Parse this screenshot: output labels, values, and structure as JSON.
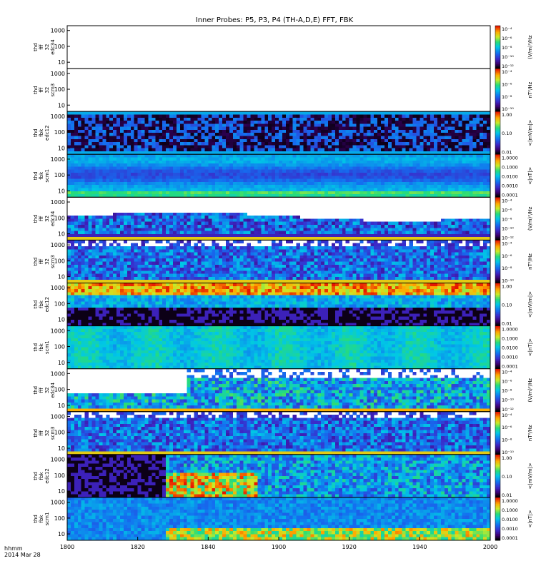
{
  "chart_data": {
    "type": "heatmap",
    "title": "Inner Probes: P5, P3, P4 (TH-A,D,E) FFT, FBK",
    "x_ticks": [
      "1800",
      "1820",
      "1840",
      "1900",
      "1920",
      "1940",
      "2000"
    ],
    "x_label": "hhmm",
    "date_label": "2014 Mar 28",
    "y_ticks": [
      "1000",
      "100",
      "10"
    ],
    "panels": [
      {
        "label": [
          "thd",
          "fff",
          "32",
          "edc34"
        ],
        "cbar": [
          "10⁻⁴",
          "10⁻⁶",
          "10⁻⁸",
          "10⁻¹⁰",
          "10⁻¹²"
        ],
        "cbar_title": "(V/m)²/Hz",
        "extra_ticks": [
          "1000",
          "10"
        ],
        "empty": true,
        "scheme": "none"
      },
      {
        "label": [
          "thd",
          "fff",
          "32",
          "scm3"
        ],
        "cbar": [
          "10⁻⁴",
          "10⁻⁶",
          "10⁻⁸",
          "10⁻¹⁰"
        ],
        "cbar_title": "nT²/Hz",
        "extra_ticks": [],
        "empty": true,
        "scheme": "none"
      },
      {
        "label": [
          "thd",
          "fbk",
          "edc12"
        ],
        "cbar": [
          "1.00",
          "0.10",
          "0.01"
        ],
        "cbar_title": "<|mV/m|>",
        "extra_ticks": [],
        "empty": false,
        "scheme": "ed_dark"
      },
      {
        "label": [
          "thd",
          "fbk",
          "scm1"
        ],
        "cbar": [
          "1.0000",
          "0.1000",
          "0.0100",
          "0.0010",
          "0.0001"
        ],
        "cbar_title": "<|nT|>",
        "extra_ticks": [],
        "empty": false,
        "scheme": "scm_low"
      },
      {
        "label": [
          "thd",
          "fff",
          "32",
          "edc34"
        ],
        "cbar": [
          "10⁻⁴",
          "10⁻⁶",
          "10⁻⁸",
          "10⁻¹⁰",
          "10⁻¹²"
        ],
        "cbar_title": "(V/m)²/Hz",
        "extra_ticks": [],
        "empty": false,
        "scheme": "fff_white"
      },
      {
        "label": [
          "thd",
          "fff",
          "32",
          "scm3"
        ],
        "cbar": [
          "10⁻⁴",
          "10⁻⁶",
          "10⁻⁸",
          "10⁻¹⁰"
        ],
        "cbar_title": "nT²/Hz",
        "extra_ticks": [],
        "empty": false,
        "scheme": "fff_scm"
      },
      {
        "label": [
          "thd",
          "fbk",
          "edc12"
        ],
        "cbar": [
          "1.00",
          "0.10",
          "0.01"
        ],
        "cbar_title": "<|mV/m|>",
        "extra_ticks": [],
        "empty": false,
        "scheme": "ed_hot"
      },
      {
        "label": [
          "thd",
          "fbk",
          "scm1"
        ],
        "cbar": [
          "1.0000",
          "0.1000",
          "0.0100",
          "0.0010",
          "0.0001"
        ],
        "cbar_title": "<|nT|>",
        "extra_ticks": [],
        "empty": false,
        "scheme": "scm_mid"
      },
      {
        "label": [
          "thd",
          "fff",
          "32",
          "edc34"
        ],
        "cbar": [
          "10⁻⁴",
          "10⁻⁶",
          "10⁻⁸",
          "10⁻¹⁰",
          "10⁻¹²"
        ],
        "cbar_title": "(V/m)²/Hz",
        "extra_ticks": [],
        "empty": false,
        "scheme": "fff_white2"
      },
      {
        "label": [
          "thd",
          "fff",
          "32",
          "scm3"
        ],
        "cbar": [
          "10⁻⁴",
          "10⁻⁶",
          "10⁻⁸",
          "10⁻¹⁰"
        ],
        "cbar_title": "nT²/Hz",
        "extra_ticks": [],
        "empty": false,
        "scheme": "fff_scm"
      },
      {
        "label": [
          "thd",
          "fbk",
          "edc12"
        ],
        "cbar": [
          "1.00",
          "0.10",
          "0.01"
        ],
        "cbar_title": "<|mV/m|>",
        "extra_ticks": [],
        "empty": false,
        "scheme": "ed_burst"
      },
      {
        "label": [
          "thd",
          "fbk",
          "scm1"
        ],
        "cbar": [
          "1.0000",
          "0.1000",
          "0.0100",
          "0.0010",
          "0.0001"
        ],
        "cbar_title": "<|nT|>",
        "extra_ticks": [],
        "empty": false,
        "scheme": "scm_burst"
      }
    ]
  }
}
